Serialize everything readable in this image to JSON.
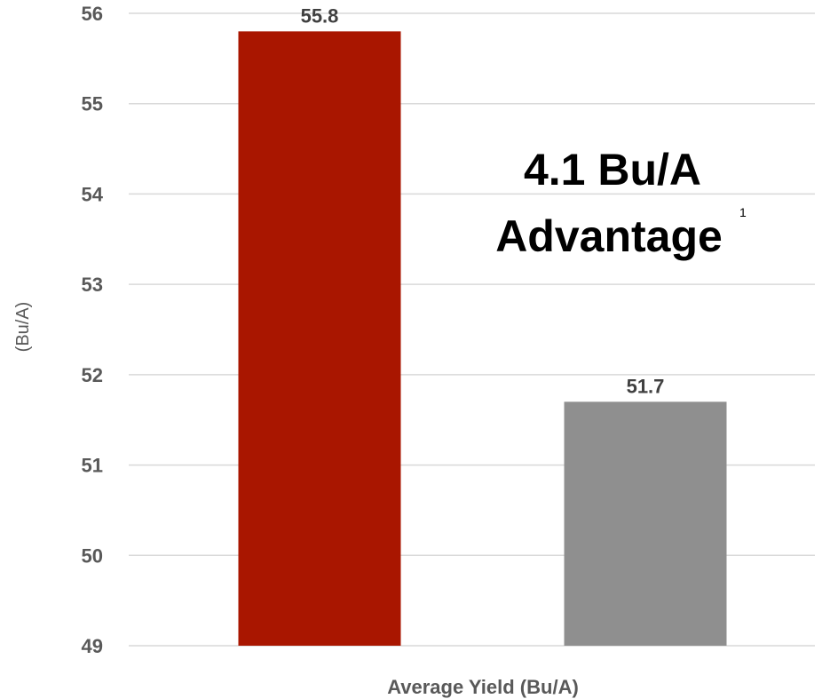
{
  "chart_data": {
    "type": "bar",
    "categories": [
      "",
      ""
    ],
    "values": [
      55.8,
      51.7
    ],
    "data_labels": [
      "55.8",
      "51.7"
    ],
    "colors": [
      "#a91600",
      "#8f8f8f"
    ],
    "ylabel": "(Bu/A)",
    "xlabel": "Average Yield (Bu/A)",
    "ylim": [
      49,
      56
    ],
    "yticks": [
      "49",
      "50",
      "51",
      "52",
      "53",
      "54",
      "55",
      "56"
    ],
    "grid": true,
    "annotation": {
      "line1": "4.1 Bu/A",
      "line2": "Advantage",
      "superscript": "1"
    }
  }
}
